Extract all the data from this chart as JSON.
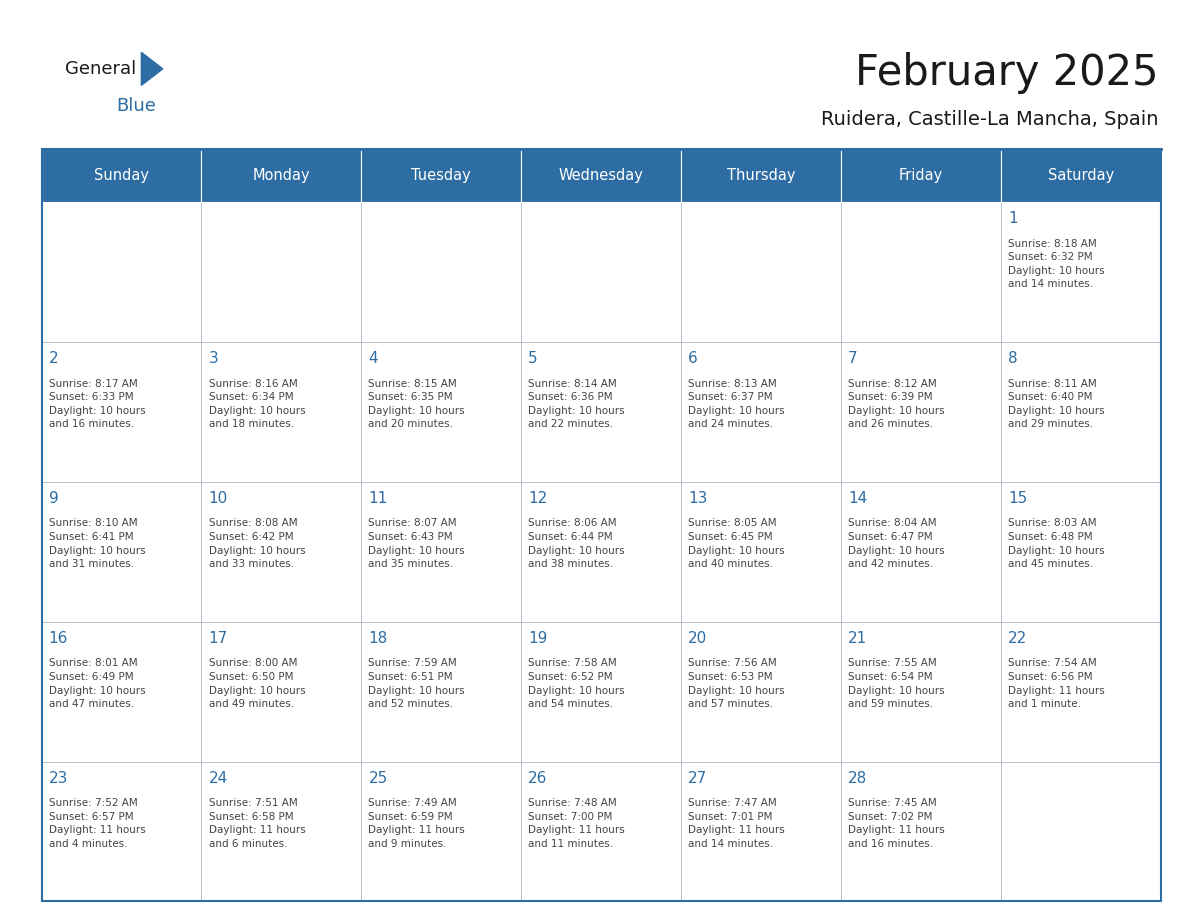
{
  "title": "February 2025",
  "subtitle": "Ruidera, Castille-La Mancha, Spain",
  "header_bg": "#2E6DA4",
  "header_text": "#FFFFFF",
  "cell_bg": "#FFFFFF",
  "border_color": "#2E6DA4",
  "cell_border_color": "#CCCCCC",
  "day_names": [
    "Sunday",
    "Monday",
    "Tuesday",
    "Wednesday",
    "Thursday",
    "Friday",
    "Saturday"
  ],
  "title_color": "#1A1A1A",
  "subtitle_color": "#1A1A1A",
  "text_color": "#444444",
  "day_number_color": "#2E6DA4",
  "logo_general_color": "#1A1A1A",
  "logo_blue_color": "#2E6DA4",
  "weeks": [
    [
      null,
      null,
      null,
      null,
      null,
      null,
      1
    ],
    [
      2,
      3,
      4,
      5,
      6,
      7,
      8
    ],
    [
      9,
      10,
      11,
      12,
      13,
      14,
      15
    ],
    [
      16,
      17,
      18,
      19,
      20,
      21,
      22
    ],
    [
      23,
      24,
      25,
      26,
      27,
      28,
      null
    ]
  ],
  "cell_data": {
    "1": {
      "sunrise": "8:18 AM",
      "sunset": "6:32 PM",
      "daylight_hrs": "10 hours",
      "daylight_min": "and 14 minutes."
    },
    "2": {
      "sunrise": "8:17 AM",
      "sunset": "6:33 PM",
      "daylight_hrs": "10 hours",
      "daylight_min": "and 16 minutes."
    },
    "3": {
      "sunrise": "8:16 AM",
      "sunset": "6:34 PM",
      "daylight_hrs": "10 hours",
      "daylight_min": "and 18 minutes."
    },
    "4": {
      "sunrise": "8:15 AM",
      "sunset": "6:35 PM",
      "daylight_hrs": "10 hours",
      "daylight_min": "and 20 minutes."
    },
    "5": {
      "sunrise": "8:14 AM",
      "sunset": "6:36 PM",
      "daylight_hrs": "10 hours",
      "daylight_min": "and 22 minutes."
    },
    "6": {
      "sunrise": "8:13 AM",
      "sunset": "6:37 PM",
      "daylight_hrs": "10 hours",
      "daylight_min": "and 24 minutes."
    },
    "7": {
      "sunrise": "8:12 AM",
      "sunset": "6:39 PM",
      "daylight_hrs": "10 hours",
      "daylight_min": "and 26 minutes."
    },
    "8": {
      "sunrise": "8:11 AM",
      "sunset": "6:40 PM",
      "daylight_hrs": "10 hours",
      "daylight_min": "and 29 minutes."
    },
    "9": {
      "sunrise": "8:10 AM",
      "sunset": "6:41 PM",
      "daylight_hrs": "10 hours",
      "daylight_min": "and 31 minutes."
    },
    "10": {
      "sunrise": "8:08 AM",
      "sunset": "6:42 PM",
      "daylight_hrs": "10 hours",
      "daylight_min": "and 33 minutes."
    },
    "11": {
      "sunrise": "8:07 AM",
      "sunset": "6:43 PM",
      "daylight_hrs": "10 hours",
      "daylight_min": "and 35 minutes."
    },
    "12": {
      "sunrise": "8:06 AM",
      "sunset": "6:44 PM",
      "daylight_hrs": "10 hours",
      "daylight_min": "and 38 minutes."
    },
    "13": {
      "sunrise": "8:05 AM",
      "sunset": "6:45 PM",
      "daylight_hrs": "10 hours",
      "daylight_min": "and 40 minutes."
    },
    "14": {
      "sunrise": "8:04 AM",
      "sunset": "6:47 PM",
      "daylight_hrs": "10 hours",
      "daylight_min": "and 42 minutes."
    },
    "15": {
      "sunrise": "8:03 AM",
      "sunset": "6:48 PM",
      "daylight_hrs": "10 hours",
      "daylight_min": "and 45 minutes."
    },
    "16": {
      "sunrise": "8:01 AM",
      "sunset": "6:49 PM",
      "daylight_hrs": "10 hours",
      "daylight_min": "and 47 minutes."
    },
    "17": {
      "sunrise": "8:00 AM",
      "sunset": "6:50 PM",
      "daylight_hrs": "10 hours",
      "daylight_min": "and 49 minutes."
    },
    "18": {
      "sunrise": "7:59 AM",
      "sunset": "6:51 PM",
      "daylight_hrs": "10 hours",
      "daylight_min": "and 52 minutes."
    },
    "19": {
      "sunrise": "7:58 AM",
      "sunset": "6:52 PM",
      "daylight_hrs": "10 hours",
      "daylight_min": "and 54 minutes."
    },
    "20": {
      "sunrise": "7:56 AM",
      "sunset": "6:53 PM",
      "daylight_hrs": "10 hours",
      "daylight_min": "and 57 minutes."
    },
    "21": {
      "sunrise": "7:55 AM",
      "sunset": "6:54 PM",
      "daylight_hrs": "10 hours",
      "daylight_min": "and 59 minutes."
    },
    "22": {
      "sunrise": "7:54 AM",
      "sunset": "6:56 PM",
      "daylight_hrs": "11 hours",
      "daylight_min": "and 1 minute."
    },
    "23": {
      "sunrise": "7:52 AM",
      "sunset": "6:57 PM",
      "daylight_hrs": "11 hours",
      "daylight_min": "and 4 minutes."
    },
    "24": {
      "sunrise": "7:51 AM",
      "sunset": "6:58 PM",
      "daylight_hrs": "11 hours",
      "daylight_min": "and 6 minutes."
    },
    "25": {
      "sunrise": "7:49 AM",
      "sunset": "6:59 PM",
      "daylight_hrs": "11 hours",
      "daylight_min": "and 9 minutes."
    },
    "26": {
      "sunrise": "7:48 AM",
      "sunset": "7:00 PM",
      "daylight_hrs": "11 hours",
      "daylight_min": "and 11 minutes."
    },
    "27": {
      "sunrise": "7:47 AM",
      "sunset": "7:01 PM",
      "daylight_hrs": "11 hours",
      "daylight_min": "and 14 minutes."
    },
    "28": {
      "sunrise": "7:45 AM",
      "sunset": "7:02 PM",
      "daylight_hrs": "11 hours",
      "daylight_min": "and 16 minutes."
    }
  }
}
